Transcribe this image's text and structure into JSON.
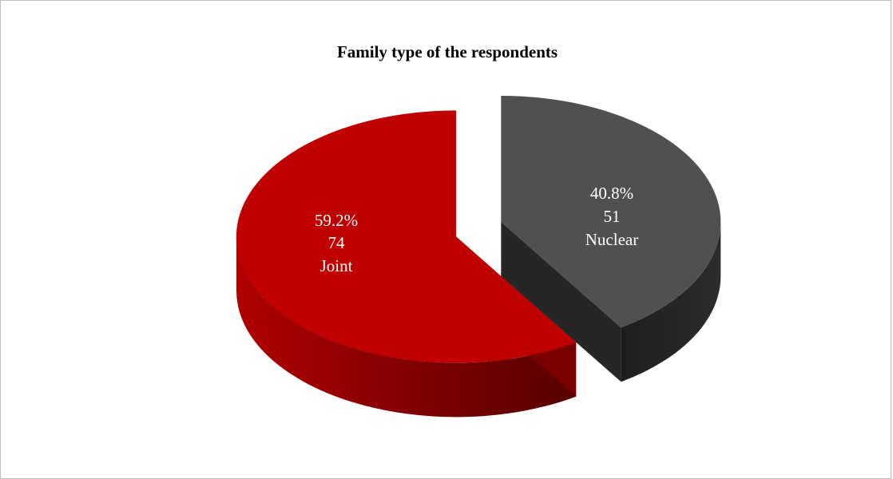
{
  "chart_data": {
    "type": "pie",
    "title": "Family type of the respondents",
    "style": "3d-exploded",
    "slices": [
      {
        "label": "Joint",
        "count": 74,
        "percent": "59.2%",
        "color": "#c00000",
        "side_color_dark": "#560000",
        "side_color_light": "#b00000"
      },
      {
        "label": "Nuclear",
        "count": 51,
        "percent": "40.8%",
        "color": "#505050",
        "side_color_dark": "#1e1e1e",
        "side_color_light": "#2c2c2c"
      }
    ],
    "legend": "none"
  }
}
